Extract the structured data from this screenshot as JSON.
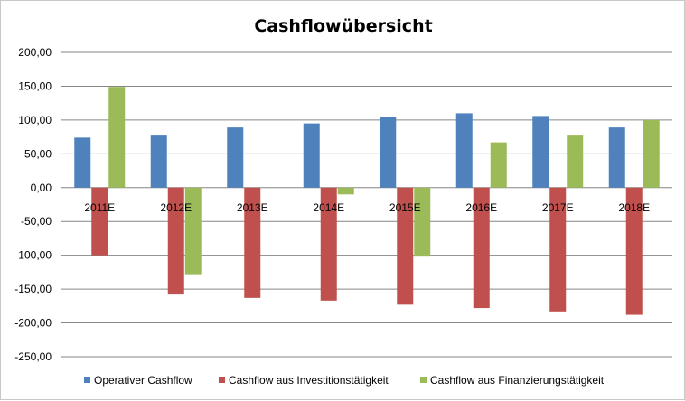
{
  "chart_data": {
    "type": "bar",
    "title": "Cashflowübersicht",
    "xlabel": "",
    "ylabel": "",
    "categories": [
      "2011E",
      "2012E",
      "2013E",
      "2014E",
      "2015E",
      "2016E",
      "2017E",
      "2018E"
    ],
    "ylim": [
      -250,
      200
    ],
    "ytick_step": 50,
    "ytick_labels": [
      "200,00",
      "150,00",
      "100,00",
      "50,00",
      "0,00",
      "-50,00",
      "-100,00",
      "-150,00",
      "-200,00",
      "-250,00"
    ],
    "grid": true,
    "legend_position": "bottom",
    "series": [
      {
        "name": "Operativer Cashflow",
        "color": "#4f81bd",
        "values": [
          74,
          77,
          89,
          95,
          105,
          110,
          106,
          89
        ]
      },
      {
        "name": "Cashflow aus Investitionstätigkeit",
        "color": "#c0504d",
        "values": [
          -100,
          -158,
          -163,
          -167,
          -173,
          -178,
          -183,
          -188
        ]
      },
      {
        "name": "Cashflow aus Finanzierungstätigkeit",
        "color": "#9bbb59",
        "values": [
          149,
          -128,
          0,
          -10,
          -102,
          67,
          77,
          100
        ]
      }
    ]
  }
}
